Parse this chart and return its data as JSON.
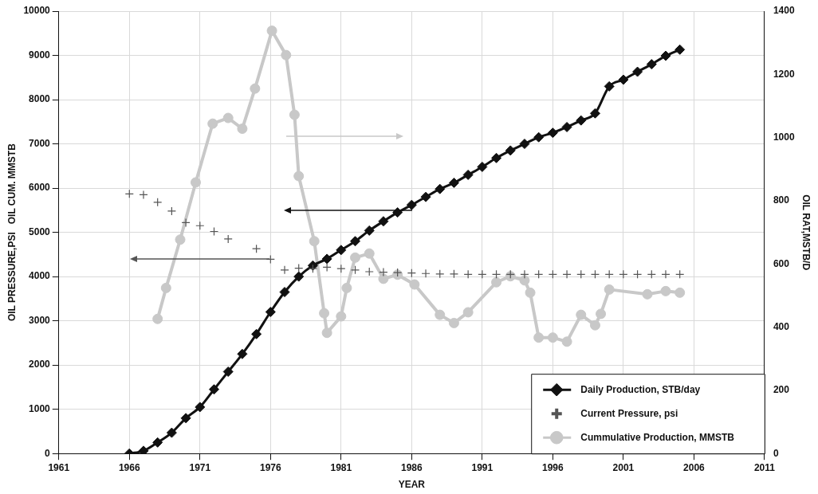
{
  "chart_data": {
    "type": "line",
    "xlabel": "YEAR",
    "ylabel": "OIL PRESSURE,PSI   OIL CUM. MMSTB",
    "y2label": "OIL RAT,MSTB/D",
    "xlim": [
      1961,
      2011
    ],
    "xticks": [
      1961,
      1966,
      1971,
      1976,
      1981,
      1986,
      1991,
      1996,
      2001,
      2006,
      2011
    ],
    "ylim": [
      0,
      10000
    ],
    "yticks": [
      0,
      1000,
      2000,
      3000,
      4000,
      5000,
      6000,
      7000,
      8000,
      9000,
      10000
    ],
    "y2lim": [
      0,
      1400
    ],
    "y2ticks": [
      0,
      200,
      400,
      600,
      800,
      1000,
      1200,
      1400
    ],
    "grid": true,
    "legend": "bottom right",
    "series": [
      {
        "name": "Daily Production, STB/day",
        "type": "line",
        "marker": "diamond",
        "color": "#111111",
        "x": [
          1966,
          1967,
          1968,
          1969,
          1970,
          1971,
          1972,
          1973,
          1974,
          1975,
          1976,
          1977,
          1978,
          1979,
          1980,
          1981,
          1982,
          1983,
          1984,
          1985,
          1986,
          1987,
          1988,
          1989,
          1990,
          1991,
          1992,
          1993,
          1994,
          1995,
          1996,
          1997,
          1998,
          1999,
          2000,
          2001,
          2002,
          2003,
          2004,
          2005
        ],
        "values": [
          0,
          60,
          250,
          470,
          800,
          1050,
          1450,
          1850,
          2250,
          2700,
          3200,
          3650,
          4000,
          4250,
          4400,
          4600,
          4800,
          5040,
          5250,
          5450,
          5620,
          5800,
          5980,
          6120,
          6300,
          6480,
          6680,
          6850,
          7000,
          7150,
          7250,
          7380,
          7530,
          7690,
          8300,
          8450,
          8630,
          8800,
          8990,
          9130
        ]
      },
      {
        "name": "Current Pressure, psi",
        "type": "scatter",
        "marker": "cross",
        "color": "#555555",
        "x": [
          1966,
          1967,
          1968,
          1969,
          1970,
          1971,
          1972,
          1973,
          1975,
          1976,
          1977,
          1978,
          1979,
          1980,
          1981,
          1982,
          1983,
          1984,
          1985,
          1986,
          1987,
          1988,
          1989,
          1990,
          1991,
          1992,
          1993,
          1994,
          1995,
          1996,
          1997,
          1998,
          1999,
          2000,
          2001,
          2002,
          2003,
          2004,
          2005
        ],
        "values": [
          5870,
          5850,
          5680,
          5480,
          5220,
          5150,
          5020,
          4850,
          4630,
          4390,
          4150,
          4190,
          4180,
          4210,
          4180,
          4150,
          4110,
          4100,
          4090,
          4080,
          4070,
          4060,
          4060,
          4050,
          4050,
          4050,
          4050,
          4050,
          4050,
          4050,
          4050,
          4050,
          4050,
          4050,
          4050,
          4050,
          4050,
          4050,
          4050
        ]
      },
      {
        "name": "Cummulative Production, MMSTB",
        "type": "line",
        "marker": "circle",
        "color": "#c8c8c8",
        "axis": "y2",
        "x": [
          1968,
          1968.6,
          1969.6,
          1970.7,
          1971.9,
          1973,
          1974,
          1974.9,
          1976.1,
          1977.1,
          1977.7,
          1978,
          1979.1,
          1979.8,
          1980,
          1981,
          1981.4,
          1982,
          1983,
          1984,
          1985,
          1986.2,
          1988,
          1989,
          1990,
          1992,
          1993,
          1994,
          1994.4,
          1995,
          1996,
          1997,
          1998,
          1999,
          1999.4,
          2000,
          2002.7,
          2004,
          2005
        ],
        "values": [
          426,
          524,
          677,
          858,
          1044,
          1062,
          1028,
          1155,
          1338,
          1261,
          1072,
          878,
          672,
          444,
          382,
          434,
          524,
          620,
          633,
          553,
          566,
          535,
          439,
          413,
          447,
          542,
          561,
          548,
          509,
          367,
          367,
          354,
          439,
          406,
          442,
          519,
          504,
          514,
          509
        ]
      }
    ]
  }
}
